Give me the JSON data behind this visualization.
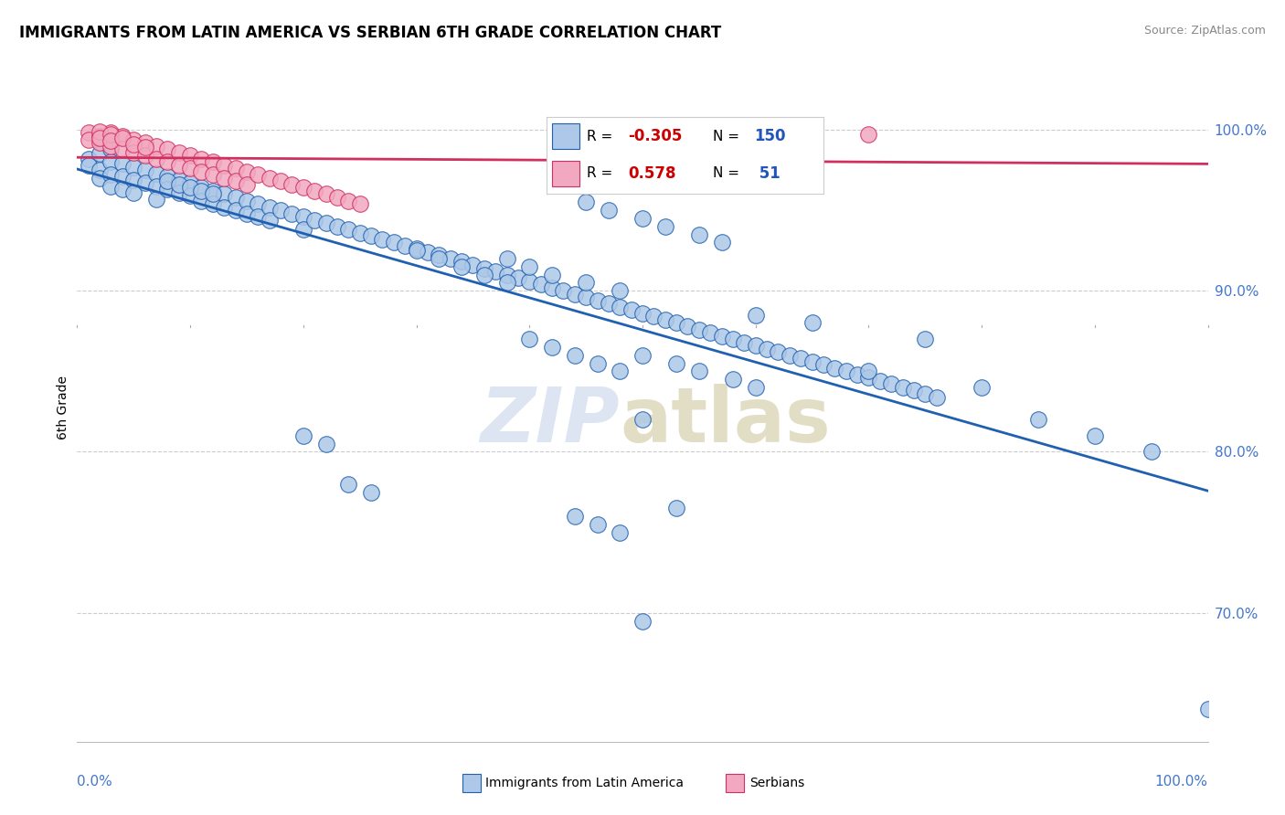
{
  "title": "IMMIGRANTS FROM LATIN AMERICA VS SERBIAN 6TH GRADE CORRELATION CHART",
  "source": "Source: ZipAtlas.com",
  "ylabel": "6th Grade",
  "legend_blue_label": "Immigrants from Latin America",
  "legend_pink_label": "Serbians",
  "blue_R": -0.305,
  "blue_N": 150,
  "pink_R": 0.578,
  "pink_N": 51,
  "blue_color": "#adc8e8",
  "pink_color": "#f2a8c0",
  "blue_line_color": "#2060b0",
  "pink_line_color": "#d03060",
  "xlim": [
    0.0,
    1.0
  ],
  "ylim": [
    0.62,
    1.035
  ],
  "y_tick_positions": [
    0.7,
    0.8,
    0.9,
    1.0
  ],
  "y_tick_labels": [
    "70.0%",
    "80.0%",
    "90.0%",
    "100.0%"
  ],
  "blue_scatter_x": [
    0.01,
    0.01,
    0.02,
    0.02,
    0.02,
    0.03,
    0.03,
    0.03,
    0.03,
    0.04,
    0.04,
    0.04,
    0.05,
    0.05,
    0.05,
    0.06,
    0.06,
    0.07,
    0.07,
    0.07,
    0.08,
    0.08,
    0.09,
    0.09,
    0.1,
    0.1,
    0.11,
    0.11,
    0.12,
    0.12,
    0.13,
    0.13,
    0.14,
    0.14,
    0.15,
    0.15,
    0.16,
    0.16,
    0.17,
    0.17,
    0.18,
    0.19,
    0.2,
    0.2,
    0.21,
    0.22,
    0.23,
    0.24,
    0.25,
    0.26,
    0.27,
    0.28,
    0.29,
    0.3,
    0.31,
    0.32,
    0.33,
    0.34,
    0.35,
    0.36,
    0.37,
    0.38,
    0.39,
    0.4,
    0.41,
    0.42,
    0.43,
    0.44,
    0.45,
    0.46,
    0.47,
    0.48,
    0.49,
    0.5,
    0.51,
    0.52,
    0.53,
    0.54,
    0.55,
    0.56,
    0.57,
    0.58,
    0.59,
    0.6,
    0.61,
    0.62,
    0.63,
    0.64,
    0.65,
    0.66,
    0.67,
    0.68,
    0.69,
    0.7,
    0.71,
    0.72,
    0.73,
    0.74,
    0.75,
    0.76,
    0.45,
    0.47,
    0.5,
    0.52,
    0.55,
    0.57,
    0.6,
    0.65,
    0.7,
    0.75,
    0.8,
    0.85,
    0.9,
    0.95,
    1.0,
    0.38,
    0.4,
    0.42,
    0.45,
    0.48,
    0.5,
    0.53,
    0.55,
    0.58,
    0.6,
    0.3,
    0.32,
    0.34,
    0.36,
    0.38,
    0.4,
    0.42,
    0.44,
    0.46,
    0.48,
    0.5,
    0.2,
    0.22,
    0.24,
    0.26,
    0.08,
    0.09,
    0.1,
    0.11,
    0.12,
    0.44,
    0.46,
    0.48,
    0.5,
    0.53
  ],
  "blue_scatter_y": [
    0.982,
    0.978,
    0.985,
    0.975,
    0.97,
    0.988,
    0.98,
    0.972,
    0.965,
    0.979,
    0.971,
    0.963,
    0.977,
    0.969,
    0.961,
    0.975,
    0.967,
    0.973,
    0.965,
    0.957,
    0.971,
    0.963,
    0.969,
    0.961,
    0.967,
    0.959,
    0.964,
    0.956,
    0.962,
    0.954,
    0.96,
    0.952,
    0.958,
    0.95,
    0.956,
    0.948,
    0.954,
    0.946,
    0.952,
    0.944,
    0.95,
    0.948,
    0.946,
    0.938,
    0.944,
    0.942,
    0.94,
    0.938,
    0.936,
    0.934,
    0.932,
    0.93,
    0.928,
    0.926,
    0.924,
    0.922,
    0.92,
    0.918,
    0.916,
    0.914,
    0.912,
    0.91,
    0.908,
    0.906,
    0.904,
    0.902,
    0.9,
    0.898,
    0.896,
    0.894,
    0.892,
    0.89,
    0.888,
    0.886,
    0.884,
    0.882,
    0.88,
    0.878,
    0.876,
    0.874,
    0.872,
    0.87,
    0.868,
    0.866,
    0.864,
    0.862,
    0.86,
    0.858,
    0.856,
    0.854,
    0.852,
    0.85,
    0.848,
    0.846,
    0.844,
    0.842,
    0.84,
    0.838,
    0.836,
    0.834,
    0.955,
    0.95,
    0.945,
    0.94,
    0.935,
    0.93,
    0.885,
    0.88,
    0.85,
    0.87,
    0.84,
    0.82,
    0.81,
    0.8,
    0.64,
    0.92,
    0.915,
    0.91,
    0.905,
    0.9,
    0.86,
    0.855,
    0.85,
    0.845,
    0.84,
    0.925,
    0.92,
    0.915,
    0.91,
    0.905,
    0.87,
    0.865,
    0.86,
    0.855,
    0.85,
    0.82,
    0.81,
    0.805,
    0.78,
    0.775,
    0.968,
    0.966,
    0.964,
    0.962,
    0.96,
    0.76,
    0.755,
    0.75,
    0.695,
    0.765
  ],
  "pink_scatter_x": [
    0.01,
    0.01,
    0.02,
    0.02,
    0.03,
    0.03,
    0.04,
    0.04,
    0.05,
    0.05,
    0.06,
    0.06,
    0.07,
    0.07,
    0.08,
    0.08,
    0.09,
    0.09,
    0.1,
    0.1,
    0.11,
    0.11,
    0.12,
    0.12,
    0.13,
    0.13,
    0.14,
    0.14,
    0.15,
    0.15,
    0.16,
    0.17,
    0.18,
    0.19,
    0.2,
    0.21,
    0.22,
    0.23,
    0.24,
    0.25,
    0.55,
    0.6,
    0.65,
    0.7,
    0.02,
    0.02,
    0.03,
    0.03,
    0.04,
    0.05,
    0.06
  ],
  "pink_scatter_y": [
    0.998,
    0.994,
    0.996,
    0.992,
    0.998,
    0.99,
    0.996,
    0.988,
    0.994,
    0.986,
    0.992,
    0.984,
    0.99,
    0.982,
    0.988,
    0.98,
    0.986,
    0.978,
    0.984,
    0.976,
    0.982,
    0.974,
    0.98,
    0.972,
    0.978,
    0.97,
    0.976,
    0.968,
    0.974,
    0.966,
    0.972,
    0.97,
    0.968,
    0.966,
    0.964,
    0.962,
    0.96,
    0.958,
    0.956,
    0.954,
    0.998,
    1.0,
    0.999,
    0.997,
    0.999,
    0.995,
    0.997,
    0.993,
    0.995,
    0.991,
    0.989
  ]
}
